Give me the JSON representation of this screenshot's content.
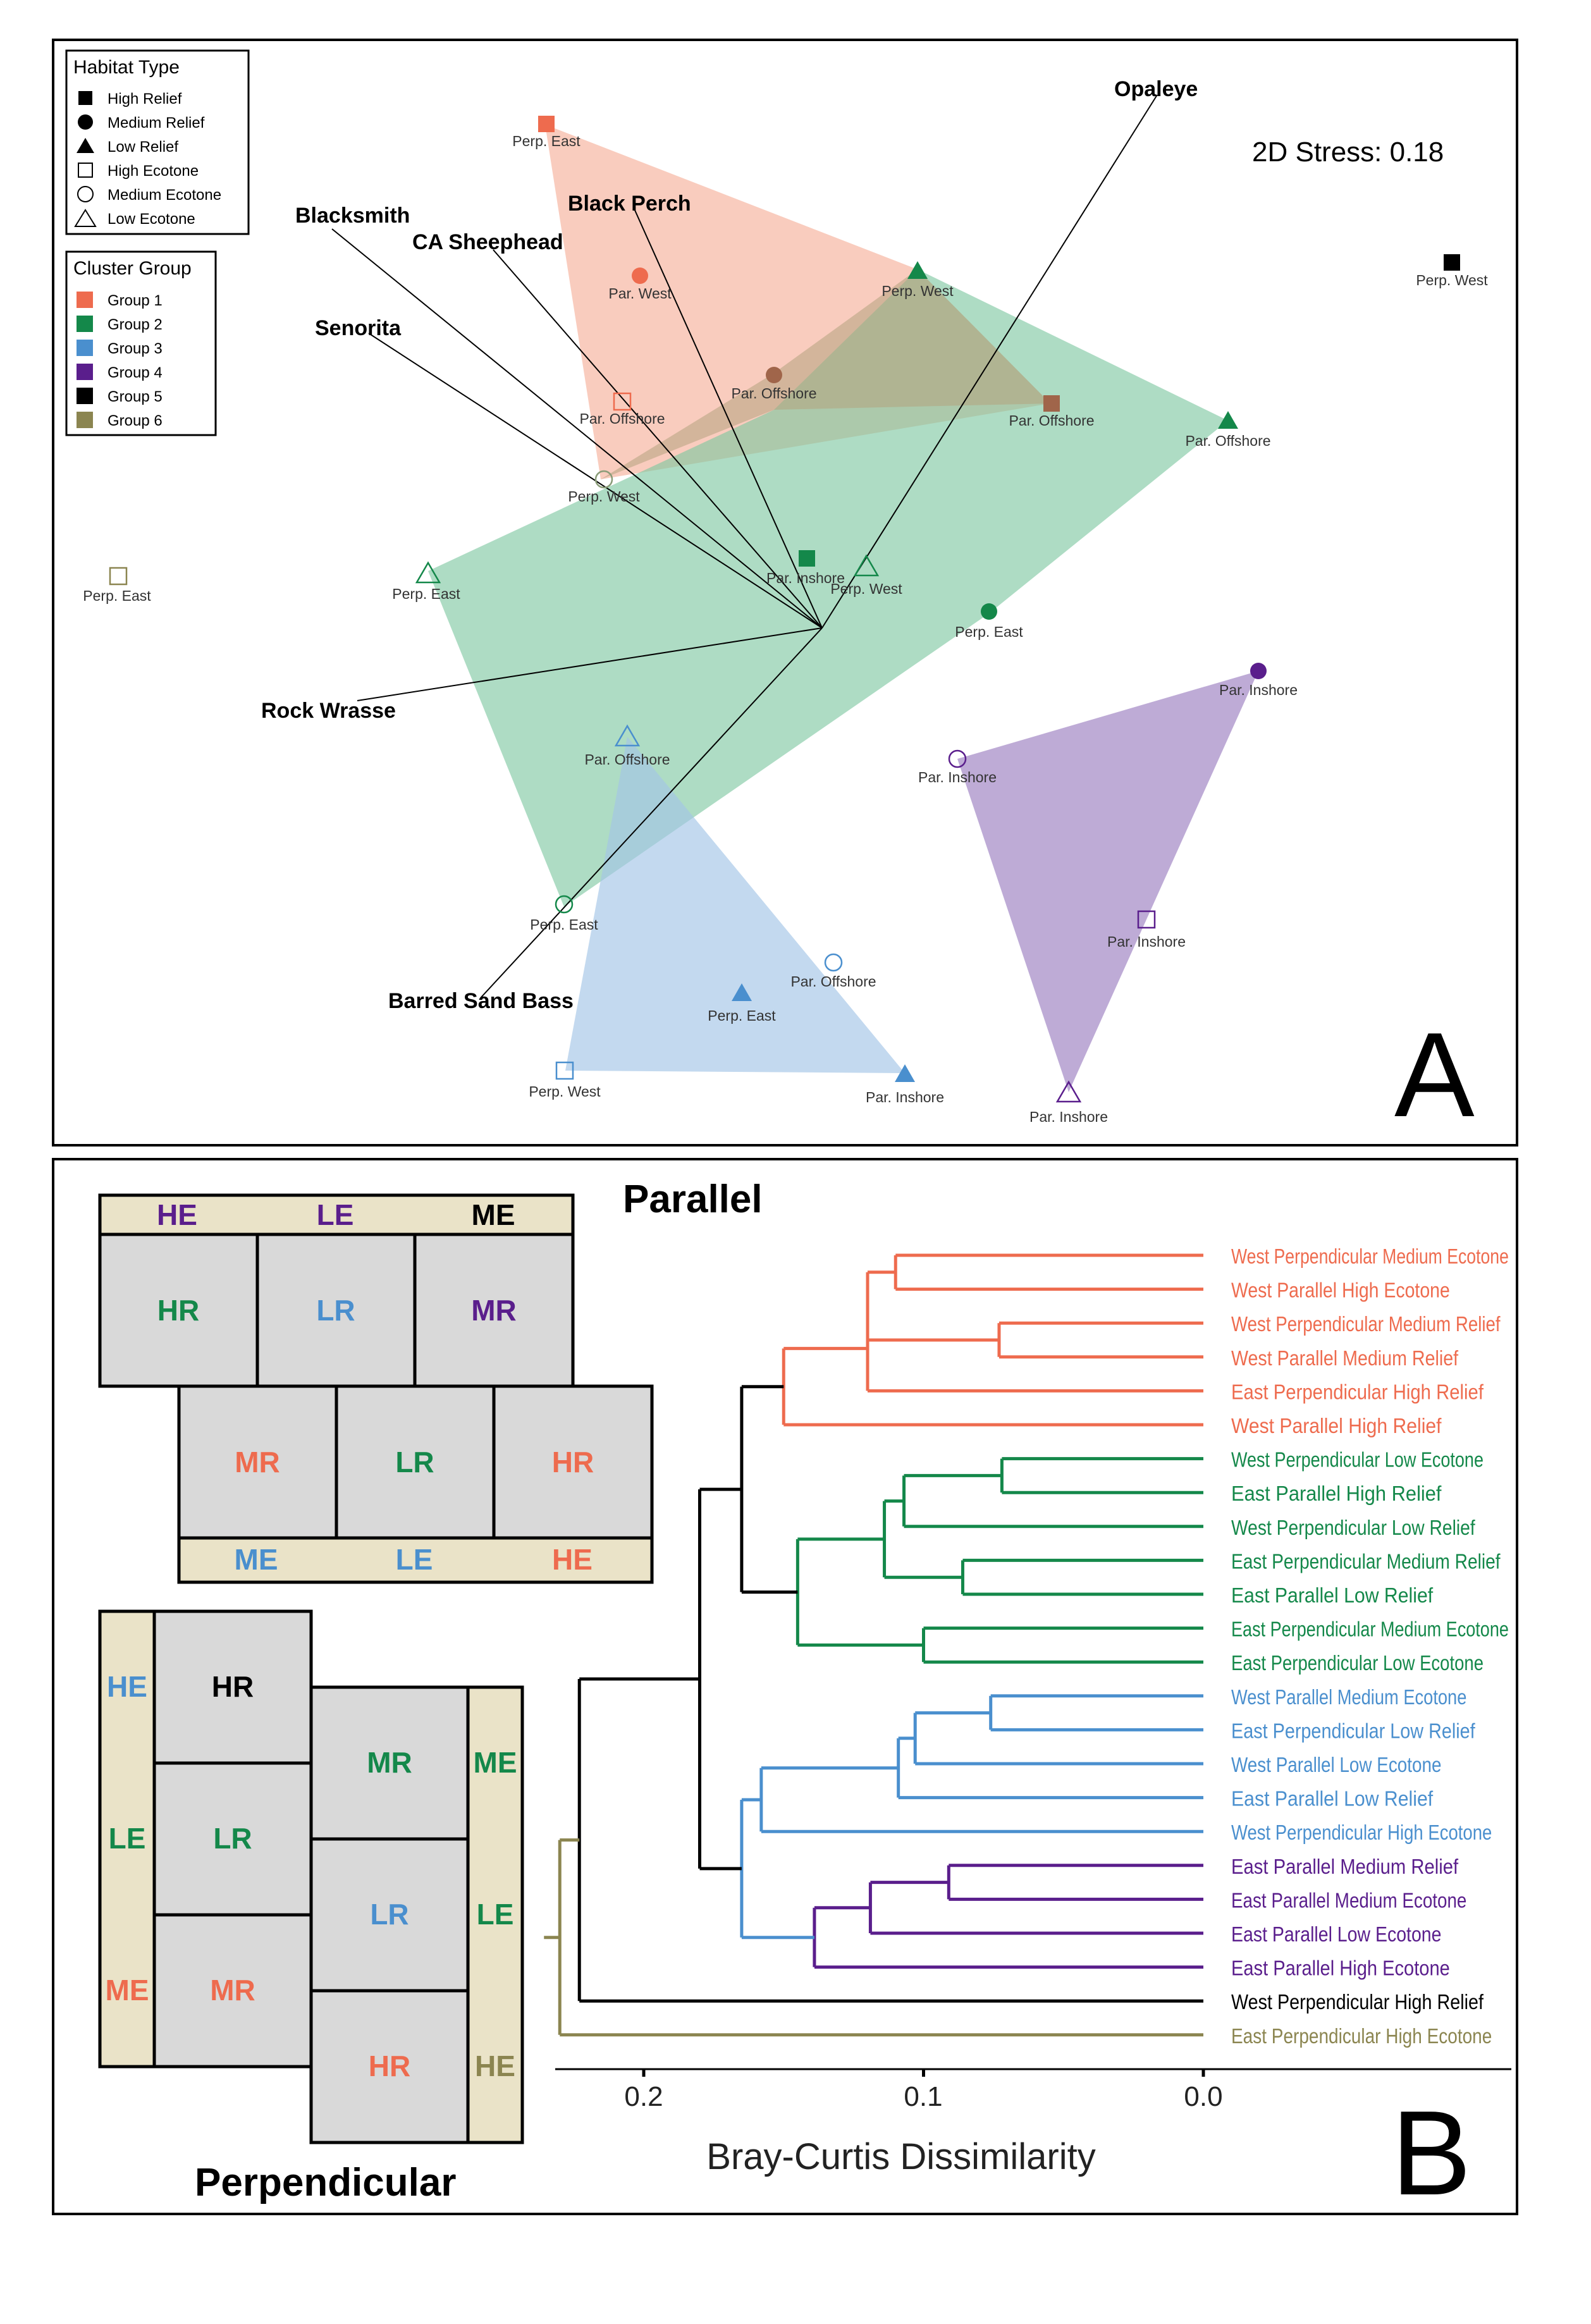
{
  "colors": {
    "group1": "#EE6B4E",
    "group2": "#14884A",
    "group3": "#4A8FCE",
    "group4": "#5A1E8C",
    "group5": "#000000",
    "group6": "#8B8550",
    "brown": "#A0654A",
    "fill1": "#F7B7A3",
    "fill2": "#7CC6A0",
    "fill3": "#A3C4E6",
    "fill4": "#B39CCF",
    "fill_mix": "#B5A37E",
    "panel_bg": "#D9D9D9",
    "ecotone_bg": "#EAE3C8"
  },
  "panel_a": {
    "stress_text": "2D Stress: 0.18",
    "panel_letter": "A",
    "legend_habitat": {
      "title": "Habitat Type",
      "items": [
        {
          "shape": "square",
          "filled": true,
          "label": "High Relief"
        },
        {
          "shape": "circle",
          "filled": true,
          "label": "Medium Relief"
        },
        {
          "shape": "triangle",
          "filled": true,
          "label": "Low Relief"
        },
        {
          "shape": "square",
          "filled": false,
          "label": "High Ecotone"
        },
        {
          "shape": "circle",
          "filled": false,
          "label": "Medium Ecotone"
        },
        {
          "shape": "triangle",
          "filled": false,
          "label": "Low Ecotone"
        }
      ]
    },
    "legend_cluster": {
      "title": "Cluster Group",
      "items": [
        {
          "label": "Group 1",
          "color": "#EE6B4E"
        },
        {
          "label": "Group 2",
          "color": "#14884A"
        },
        {
          "label": "Group 3",
          "color": "#4A8FCE"
        },
        {
          "label": "Group 4",
          "color": "#5A1E8C"
        },
        {
          "label": "Group 5",
          "color": "#000000"
        },
        {
          "label": "Group 6",
          "color": "#8B8550"
        }
      ]
    },
    "vector_labels": [
      "Opaleye",
      "Black Perch",
      "Blacksmith",
      "CA Sheephead",
      "Senorita",
      "Rock Wrasse",
      "Barred Sand Bass"
    ],
    "point_labels": [
      "Perp. East",
      "Perp. West",
      "Par. Offshore",
      "Par. West",
      "Perp. West",
      "Par. Offshore",
      "Par. Offshore",
      "Par. Offshore",
      "Perp. West",
      "Perp. East",
      "Par. Inshore",
      "Perp. West",
      "Perp. East",
      "Perp. East",
      "Par. Inshore",
      "Par. Inshore",
      "Par. Offshore",
      "Perp. East",
      "Par. Offshore",
      "Perp. East",
      "Perp. West",
      "Par. Inshore",
      "Par. Inshore",
      "Par. Inshore",
      "Perp. West"
    ]
  },
  "panel_b": {
    "panel_letter": "B",
    "parallel_title": "Parallel",
    "perpendicular_title": "Perpendicular",
    "parallel_top_strip": [
      "HE",
      "LE",
      "ME"
    ],
    "parallel_row1": [
      "HR",
      "LR",
      "MR"
    ],
    "parallel_row2": [
      "MR",
      "LR",
      "HR"
    ],
    "parallel_bottom_strip": [
      "ME",
      "LE",
      "HE"
    ],
    "perp_left_strip": [
      "HE",
      "LE",
      "ME"
    ],
    "perp_col1": [
      "HR",
      "LR",
      "MR"
    ],
    "perp_col2": [
      "MR",
      "LR",
      "HR"
    ],
    "perp_right_strip": [
      "ME",
      "LE",
      "HE"
    ],
    "xlabel": "Bray-Curtis Dissimilarity",
    "ticks": [
      "0.2",
      "0.1",
      "0.0"
    ]
  },
  "chart_data": {
    "type": "dendrogram",
    "xlabel": "Bray-Curtis Dissimilarity",
    "xlim": [
      0.23,
      0.0
    ],
    "leaves": [
      {
        "label": "West Perpendicular Medium Ecotone",
        "group": 1
      },
      {
        "label": "West Parallel High Ecotone",
        "group": 1
      },
      {
        "label": "West Perpendicular Medium Relief",
        "group": 1
      },
      {
        "label": "West Parallel Medium Relief",
        "group": 1
      },
      {
        "label": "East Perpendicular High Relief",
        "group": 1
      },
      {
        "label": "West Parallel High Relief",
        "group": 1
      },
      {
        "label": "West Perpendicular Low Ecotone",
        "group": 2
      },
      {
        "label": "East Parallel High Relief",
        "group": 2
      },
      {
        "label": "West Perpendicular Low Relief",
        "group": 2
      },
      {
        "label": "East Perpendicular Medium Relief",
        "group": 2
      },
      {
        "label": "East Parallel Low Relief",
        "group": 2
      },
      {
        "label": "East Perpendicular Medium Ecotone",
        "group": 2
      },
      {
        "label": "East Perpendicular Low Ecotone",
        "group": 2
      },
      {
        "label": "West Parallel Medium Ecotone",
        "group": 3
      },
      {
        "label": "East Perpendicular Low Relief",
        "group": 3
      },
      {
        "label": "West Parallel Low Ecotone",
        "group": 3
      },
      {
        "label": "East Parallel Low Relief",
        "group": 3
      },
      {
        "label": "West Perpendicular High Ecotone",
        "group": 3
      },
      {
        "label": "East Parallel Medium Relief",
        "group": 4
      },
      {
        "label": "East Parallel Medium Ecotone",
        "group": 4
      },
      {
        "label": "East Parallel Low Ecotone",
        "group": 4
      },
      {
        "label": "East Parallel High Ecotone",
        "group": 4
      },
      {
        "label": "West Perpendicular High Relief",
        "group": 5
      },
      {
        "label": "East Perpendicular High Ecotone",
        "group": 6
      }
    ],
    "merges": [
      {
        "a": "L1",
        "b": "L2",
        "height": 0.11,
        "color": "group1"
      },
      {
        "a": "L3",
        "b": "L4",
        "height": 0.073,
        "color": "group1"
      },
      {
        "a": "L1",
        "b": "L3",
        "height": 0.12,
        "color": "group1"
      },
      {
        "a": "L1",
        "b": "L5",
        "height": 0.12,
        "color": "group1"
      },
      {
        "a": "L1",
        "b": "L6",
        "height": 0.15,
        "color": "group1"
      },
      {
        "a": "L7",
        "b": "L8",
        "height": 0.072,
        "color": "group2"
      },
      {
        "a": "L7",
        "b": "L9",
        "height": 0.107,
        "color": "group2"
      },
      {
        "a": "L10",
        "b": "L11",
        "height": 0.086,
        "color": "group2"
      },
      {
        "a": "L7",
        "b": "L10",
        "height": 0.114,
        "color": "group2"
      },
      {
        "a": "L12",
        "b": "L13",
        "height": 0.1,
        "color": "group2"
      },
      {
        "a": "L7",
        "b": "L12",
        "height": 0.145,
        "color": "group2"
      },
      {
        "a": "L1",
        "b": "L7",
        "height": 0.165,
        "color": "group5"
      },
      {
        "a": "L14",
        "b": "L15",
        "height": 0.076,
        "color": "group3"
      },
      {
        "a": "L14",
        "b": "L16",
        "height": 0.103,
        "color": "group3"
      },
      {
        "a": "L14",
        "b": "L17",
        "height": 0.109,
        "color": "group3"
      },
      {
        "a": "L14",
        "b": "L18",
        "height": 0.158,
        "color": "group3"
      },
      {
        "a": "L19",
        "b": "L20",
        "height": 0.091,
        "color": "group4"
      },
      {
        "a": "L19",
        "b": "L21",
        "height": 0.119,
        "color": "group4"
      },
      {
        "a": "L19",
        "b": "L22",
        "height": 0.139,
        "color": "group4"
      },
      {
        "a": "L14",
        "b": "L19",
        "height": 0.165,
        "color": "group3"
      },
      {
        "a": "L1",
        "b": "L14",
        "height": 0.18,
        "color": "group5"
      },
      {
        "a": "L1",
        "b": "L23",
        "height": 0.223,
        "color": "group5"
      },
      {
        "a": "L1",
        "b": "L24",
        "height": 0.23,
        "color": "group6"
      }
    ]
  }
}
